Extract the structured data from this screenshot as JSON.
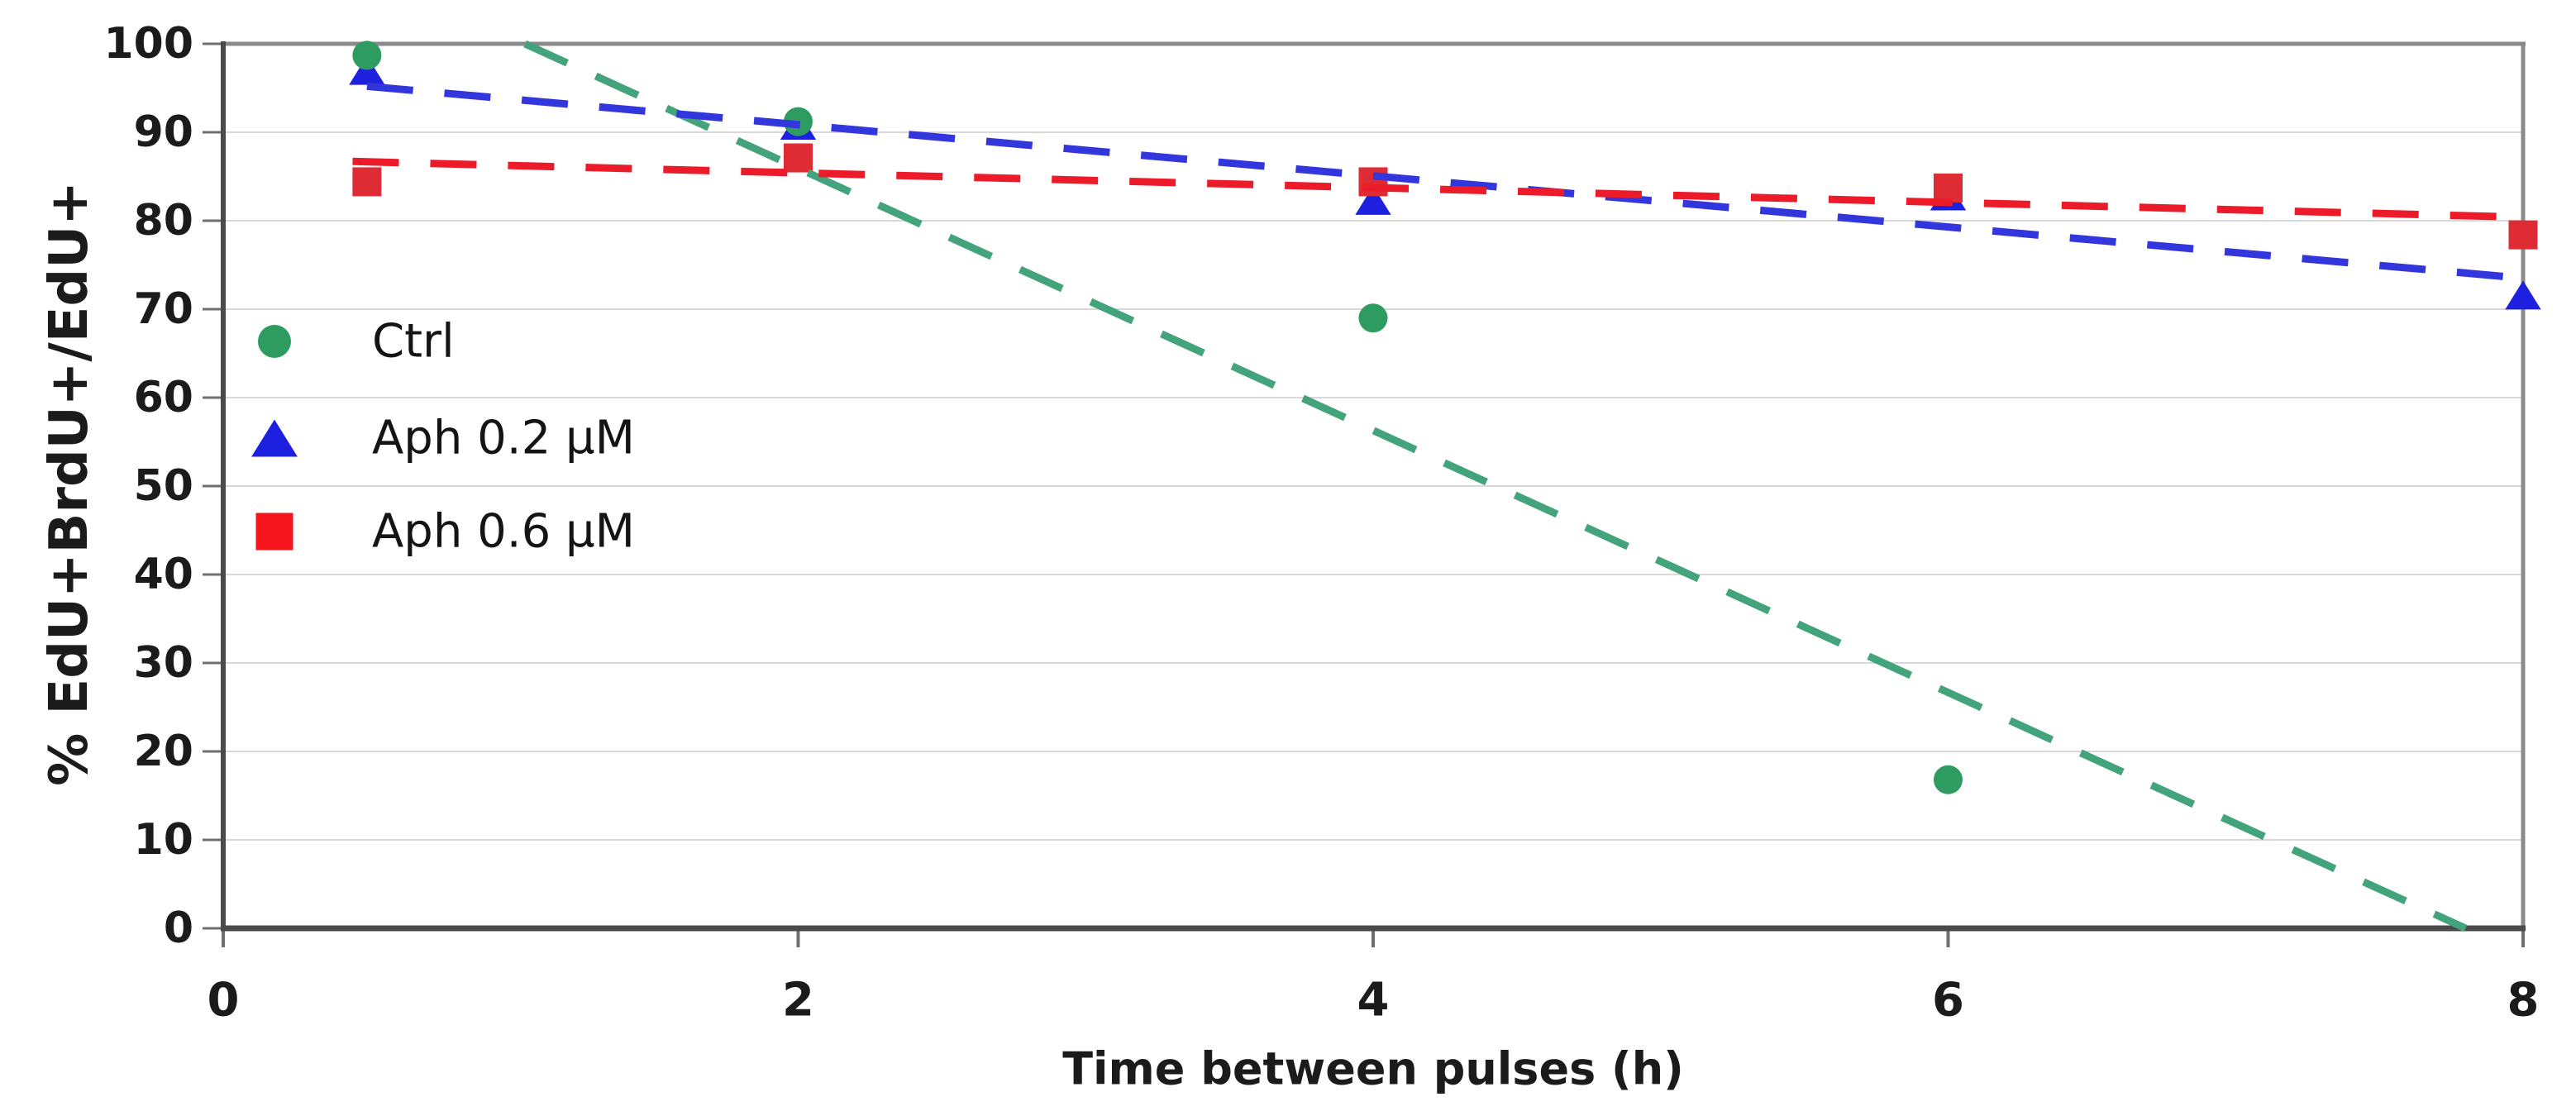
{
  "figure": {
    "background_color": "#ffffff",
    "plot_border_color": "#8a8a8a",
    "axis_line_color": "#4a4a4a",
    "gridline_color": "#d8d8d8",
    "tick_color": "#6f6f6f",
    "text_color": "#1b1b1b"
  },
  "chart_data": {
    "type": "scatter",
    "title": "",
    "xlabel": "Time between pulses (h)",
    "ylabel": "% EdU+BrdU+/EdU+",
    "xlim": [
      0,
      8
    ],
    "ylim": [
      0,
      100
    ],
    "x_ticks": [
      0,
      2,
      4,
      6,
      8
    ],
    "x_tick_labels": [
      "0",
      "2",
      "4",
      "6",
      "8"
    ],
    "y_ticks": [
      0,
      10,
      20,
      30,
      40,
      50,
      60,
      70,
      80,
      90,
      100
    ],
    "y_tick_labels": [
      "0",
      "10",
      "20",
      "30",
      "40",
      "50",
      "60",
      "70",
      "80",
      "90",
      "100"
    ],
    "grid": "horizontal-only",
    "legend_position": "upper-left-inside",
    "series": [
      {
        "name": "Ctrl",
        "marker": "circle",
        "color": "#2E9B60",
        "trend_color": "#43A47B",
        "x": [
          0.5,
          2,
          4,
          6
        ],
        "y": [
          98.7,
          91.2,
          69.0,
          16.8
        ],
        "trendline": {
          "style": "dashed",
          "x_start": 1.05,
          "y_start": 100,
          "x_end": 7.8,
          "y_end": 0
        }
      },
      {
        "name": "Aph 0.2 µM",
        "marker": "triangle",
        "color": "#1E20E0",
        "trend_color": "#3336DC",
        "x": [
          0.5,
          2,
          4,
          6,
          8
        ],
        "y": [
          97.0,
          90.8,
          82.3,
          82.8,
          71.6
        ],
        "trendline": {
          "style": "dashed",
          "x_start": 0.5,
          "y_start": 95.2,
          "x_end": 8,
          "y_end": 73.5
        }
      },
      {
        "name": "Aph 0.6 µM",
        "marker": "square",
        "color": "#DE2B34",
        "legend_color": "#F6141D",
        "trend_color": "#EC1B29",
        "x": [
          0.5,
          2,
          4,
          6,
          8
        ],
        "y": [
          84.4,
          87.1,
          84.4,
          83.7,
          78.4
        ],
        "trendline": {
          "style": "dashed",
          "x_start": 0.45,
          "y_start": 86.7,
          "x_end": 8,
          "y_end": 80.4
        }
      }
    ]
  }
}
